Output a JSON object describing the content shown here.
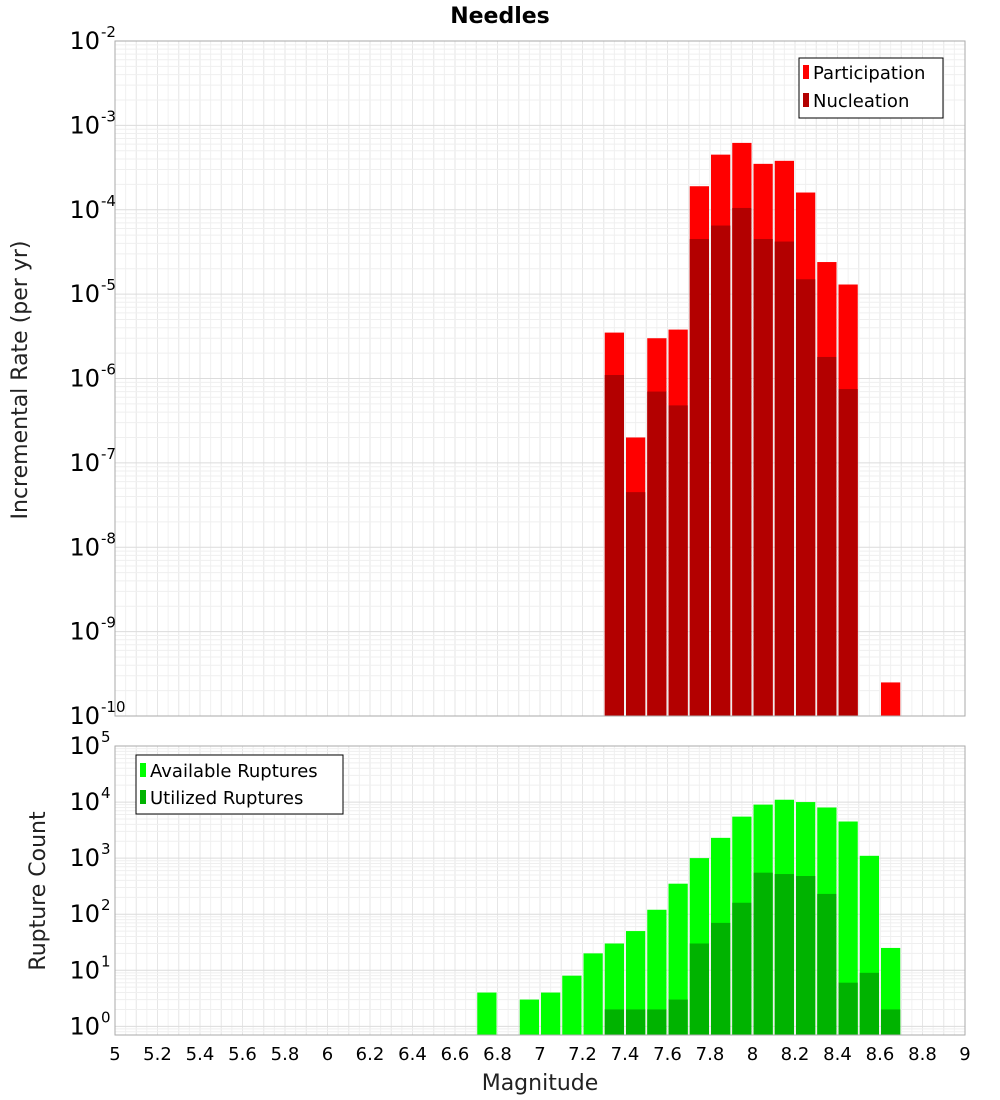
{
  "title": "Needles",
  "xlabel": "Magnitude",
  "chart_data": [
    {
      "type": "bar",
      "name": "incremental-rate",
      "title": "Needles",
      "xlabel": "Magnitude",
      "ylabel": "Incremental Rate (per yr)",
      "yscale": "log",
      "xlim": [
        5,
        9
      ],
      "ylim": [
        1e-10,
        0.01
      ],
      "bar_width": 0.1,
      "x": [
        7.35,
        7.45,
        7.55,
        7.65,
        7.75,
        7.85,
        7.95,
        8.05,
        8.15,
        8.25,
        8.35,
        8.45,
        8.55,
        8.65
      ],
      "series": [
        {
          "name": "Participation",
          "color": "#ff0000",
          "values": [
            3.5e-06,
            2e-07,
            3e-06,
            3.8e-06,
            0.00019,
            0.00045,
            0.00062,
            0.00035,
            0.00038,
            0.00016,
            2.4e-05,
            1.3e-05,
            null,
            2.5e-10
          ]
        },
        {
          "name": "Nucleation",
          "color": "#b30000",
          "values": [
            1.1e-06,
            4.5e-08,
            7e-07,
            4.8e-07,
            4.5e-05,
            6.5e-05,
            0.000105,
            4.5e-05,
            4.2e-05,
            1.5e-05,
            1.8e-06,
            7.5e-07,
            null,
            null
          ]
        }
      ],
      "legend": {
        "position": "top-right",
        "entries": [
          "Participation",
          "Nucleation"
        ]
      },
      "y_ticks": [
        {
          "mant": "10",
          "exp": "-2"
        },
        {
          "mant": "10",
          "exp": "-3"
        },
        {
          "mant": "10",
          "exp": "-4"
        },
        {
          "mant": "10",
          "exp": "-5"
        },
        {
          "mant": "10",
          "exp": "-6"
        },
        {
          "mant": "10",
          "exp": "-7"
        },
        {
          "mant": "10",
          "exp": "-8"
        },
        {
          "mant": "10",
          "exp": "-9"
        },
        {
          "mant": "10",
          "exp": "-10"
        }
      ],
      "grid": true
    },
    {
      "type": "bar",
      "name": "rupture-count",
      "xlabel": "Magnitude",
      "ylabel": "Rupture Count",
      "yscale": "log",
      "xlim": [
        5,
        9
      ],
      "ylim": [
        0.7,
        100000.0
      ],
      "bar_width": 0.1,
      "x": [
        6.75,
        6.95,
        7.05,
        7.15,
        7.25,
        7.35,
        7.45,
        7.55,
        7.65,
        7.75,
        7.85,
        7.95,
        8.05,
        8.15,
        8.25,
        8.35,
        8.45,
        8.55,
        8.65
      ],
      "series": [
        {
          "name": "Available Ruptures",
          "color": "#00ff00",
          "values": [
            4,
            3,
            4,
            8,
            20,
            30,
            50,
            120,
            350,
            1000,
            2300,
            5500,
            9000,
            11000,
            10000,
            8000,
            4500,
            1100,
            25
          ]
        },
        {
          "name": "Utilized Ruptures",
          "color": "#00b300",
          "values": [
            null,
            null,
            null,
            null,
            null,
            2,
            2,
            2,
            3,
            30,
            70,
            160,
            550,
            520,
            480,
            230,
            6,
            9,
            2
          ]
        }
      ],
      "legend": {
        "position": "top-left",
        "entries": [
          "Available Ruptures",
          "Utilized Ruptures"
        ]
      },
      "y_ticks": [
        {
          "mant": "10",
          "exp": "5"
        },
        {
          "mant": "10",
          "exp": "4"
        },
        {
          "mant": "10",
          "exp": "3"
        },
        {
          "mant": "10",
          "exp": "2"
        },
        {
          "mant": "10",
          "exp": "1"
        },
        {
          "mant": "10",
          "exp": "0"
        }
      ],
      "grid": true
    }
  ],
  "x_ticks": [
    "5",
    "5.2",
    "5.4",
    "5.6",
    "5.8",
    "6",
    "6.2",
    "6.4",
    "6.6",
    "6.8",
    "7",
    "7.2",
    "7.4",
    "7.6",
    "7.8",
    "8",
    "8.2",
    "8.4",
    "8.6",
    "8.8",
    "9"
  ]
}
